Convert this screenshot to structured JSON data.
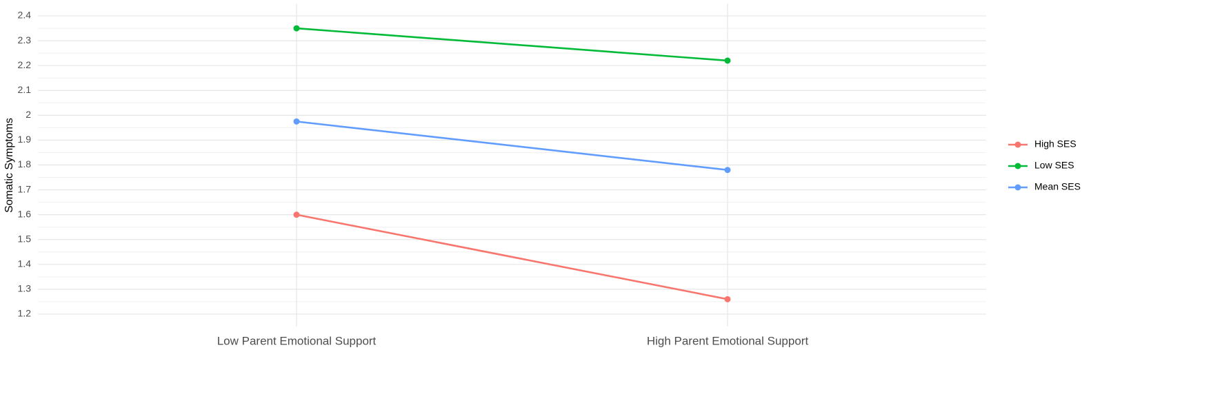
{
  "chart_data": {
    "type": "line",
    "y_label": "Somatic Symptoms",
    "categories": [
      "Low Parent Emotional Support",
      "High Parent Emotional Support"
    ],
    "series": [
      {
        "name": "High SES",
        "color": "#F8766D",
        "values": [
          1.6,
          1.26
        ]
      },
      {
        "name": "Low SES",
        "color": "#00BA38",
        "values": [
          2.35,
          2.22
        ]
      },
      {
        "name": "Mean SES",
        "color": "#619CFF",
        "values": [
          1.975,
          1.78
        ]
      }
    ],
    "ylim": [
      1.15,
      2.45
    ],
    "yticks": [
      1.2,
      1.3,
      1.4,
      1.5,
      1.6,
      1.7,
      1.8,
      1.9,
      2.0,
      2.1,
      2.2,
      2.3,
      2.4
    ],
    "grid": true,
    "minor_grid": true,
    "legend": "right"
  }
}
